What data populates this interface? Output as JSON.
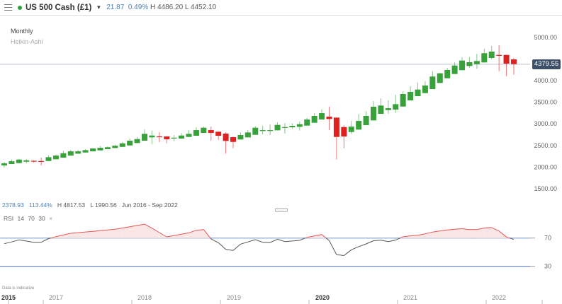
{
  "header": {
    "title": "US 500 Cash (£1)",
    "change": "21.87",
    "change_pct": "0.49%",
    "high": "H 4486.20",
    "low": "L 4452.10",
    "status_color": "#2fa23b"
  },
  "chart_labels": {
    "interval": "Monthly",
    "style": "Heikin-Ashi"
  },
  "price_tag": "4379.55",
  "summary": {
    "value": "2378.93",
    "pct": "113.44%",
    "high": "H 4817.53",
    "low": "L 1990.56",
    "range": "Jun 2016 - Sep 2022"
  },
  "rsi_header": {
    "name": "RSI",
    "period": "14",
    "upper": "70",
    "lower": "30",
    "close": "×"
  },
  "disclaimer": "Data is indicative",
  "years": [
    "2015",
    "2017",
    "2018",
    "2019",
    "2020",
    "2021",
    "2022"
  ],
  "chart_data": {
    "type": "candlestick",
    "style": "Heikin-Ashi",
    "y_ticks": [
      5000,
      4000,
      3500,
      3000,
      2500,
      2000,
      1500
    ],
    "y_tick_labels": [
      "5000.00",
      "4000.00",
      "3500.00",
      "3000.00",
      "2500.00",
      "2000.00",
      "1500.00"
    ],
    "current_price": 4379.55,
    "colors": {
      "up": "#38a13a",
      "down": "#e02020",
      "rsi_above": "#e85454",
      "rsi_below": "#555555",
      "rsi_lines": "#4a72a8"
    },
    "candles": [
      [
        2037,
        2119,
        1988,
        2086
      ],
      [
        2070,
        2173,
        2070,
        2135
      ],
      [
        2091,
        2185,
        2091,
        2173
      ],
      [
        2124,
        2184,
        2086,
        2157
      ],
      [
        2145,
        2160,
        2103,
        2135
      ],
      [
        2140,
        2217,
        2037,
        2130
      ],
      [
        2140,
        2271,
        2140,
        2228
      ],
      [
        2180,
        2287,
        2180,
        2266
      ],
      [
        2217,
        2376,
        2217,
        2320
      ],
      [
        2266,
        2397,
        2266,
        2364
      ],
      [
        2310,
        2392,
        2310,
        2364
      ],
      [
        2337,
        2413,
        2337,
        2392
      ],
      [
        2364,
        2446,
        2364,
        2430
      ],
      [
        2386,
        2484,
        2386,
        2446
      ],
      [
        2414,
        2480,
        2414,
        2458
      ],
      [
        2441,
        2517,
        2441,
        2495
      ],
      [
        2467,
        2577,
        2467,
        2549
      ],
      [
        2500,
        2659,
        2500,
        2610
      ],
      [
        2556,
        2692,
        2556,
        2648
      ],
      [
        2610,
        2872,
        2610,
        2769
      ],
      [
        2687,
        2839,
        2528,
        2730
      ],
      [
        2709,
        2807,
        2577,
        2691
      ],
      [
        2709,
        2713,
        2549,
        2643
      ],
      [
        2664,
        2740,
        2594,
        2680
      ],
      [
        2659,
        2785,
        2659,
        2730
      ],
      [
        2697,
        2850,
        2697,
        2769
      ],
      [
        2725,
        2921,
        2725,
        2855
      ],
      [
        2790,
        2937,
        2790,
        2910
      ],
      [
        2855,
        2937,
        2610,
        2790
      ],
      [
        2818,
        2818,
        2631,
        2725
      ],
      [
        2774,
        2801,
        2315,
        2605
      ],
      [
        2692,
        2703,
        2435,
        2582
      ],
      [
        2638,
        2801,
        2638,
        2741
      ],
      [
        2687,
        2855,
        2687,
        2801
      ],
      [
        2746,
        2949,
        2746,
        2910
      ],
      [
        2834,
        2954,
        2757,
        2855
      ],
      [
        2839,
        2987,
        2741,
        2855
      ],
      [
        2850,
        3036,
        2850,
        2975
      ],
      [
        2916,
        3019,
        2774,
        2926
      ],
      [
        2921,
        3008,
        2893,
        2954
      ],
      [
        2932,
        3052,
        2844,
        2992
      ],
      [
        2959,
        3139,
        2959,
        3101
      ],
      [
        3025,
        3248,
        3025,
        3183
      ],
      [
        3101,
        3342,
        3101,
        3248
      ],
      [
        3167,
        3396,
        2856,
        3112
      ],
      [
        3145,
        3145,
        2173,
        2697
      ],
      [
        2926,
        2965,
        2435,
        2708
      ],
      [
        2811,
        3068,
        2762,
        2937
      ],
      [
        2867,
        3227,
        2867,
        3068
      ],
      [
        2970,
        3292,
        2970,
        3183
      ],
      [
        3080,
        3527,
        3080,
        3396
      ],
      [
        3232,
        3592,
        3232,
        3424
      ],
      [
        3319,
        3548,
        3232,
        3363
      ],
      [
        3330,
        3674,
        3253,
        3456
      ],
      [
        3401,
        3751,
        3401,
        3690
      ],
      [
        3543,
        3870,
        3543,
        3740
      ],
      [
        3641,
        3957,
        3641,
        3794
      ],
      [
        3712,
        3985,
        3712,
        3887
      ],
      [
        3805,
        4219,
        3805,
        4095
      ],
      [
        3947,
        4181,
        3947,
        4170
      ],
      [
        4056,
        4296,
        4056,
        4247
      ],
      [
        4154,
        4422,
        4154,
        4350
      ],
      [
        4242,
        4542,
        4242,
        4465
      ],
      [
        4340,
        4542,
        4301,
        4427
      ],
      [
        4383,
        4623,
        4275,
        4455
      ],
      [
        4422,
        4733,
        4422,
        4635
      ],
      [
        4525,
        4804,
        4493,
        4673
      ],
      [
        4596,
        4820,
        4219,
        4580
      ],
      [
        4596,
        4596,
        4105,
        4394
      ],
      [
        4493,
        4520,
        4137,
        4383
      ]
    ],
    "rsi": {
      "period": 14,
      "upper": 70,
      "lower": 30,
      "upper_label": "70",
      "lower_label": "30",
      "values": [
        62,
        64.5,
        67.4,
        65.7,
        64,
        64,
        69.2,
        72,
        74.3,
        76.7,
        77.6,
        78.6,
        79.5,
        80.5,
        81.4,
        82.4,
        84.2,
        85.9,
        87.8,
        89.6,
        84,
        77.7,
        71.7,
        73.6,
        75.4,
        77.4,
        81,
        82,
        68.8,
        63.4,
        54,
        52.5,
        61.4,
        64.5,
        67.7,
        64,
        63.7,
        68.3,
        65,
        65.8,
        66.7,
        71,
        73,
        75.1,
        66.4,
        46.6,
        45.2,
        53.4,
        57.9,
        61.7,
        66.2,
        67,
        64.9,
        67.1,
        71.8,
        73.1,
        74,
        76,
        78.5,
        80.1,
        81.4,
        82.4,
        83.2,
        82,
        82,
        84.2,
        84.9,
        79.9,
        71.5,
        68
      ]
    }
  }
}
